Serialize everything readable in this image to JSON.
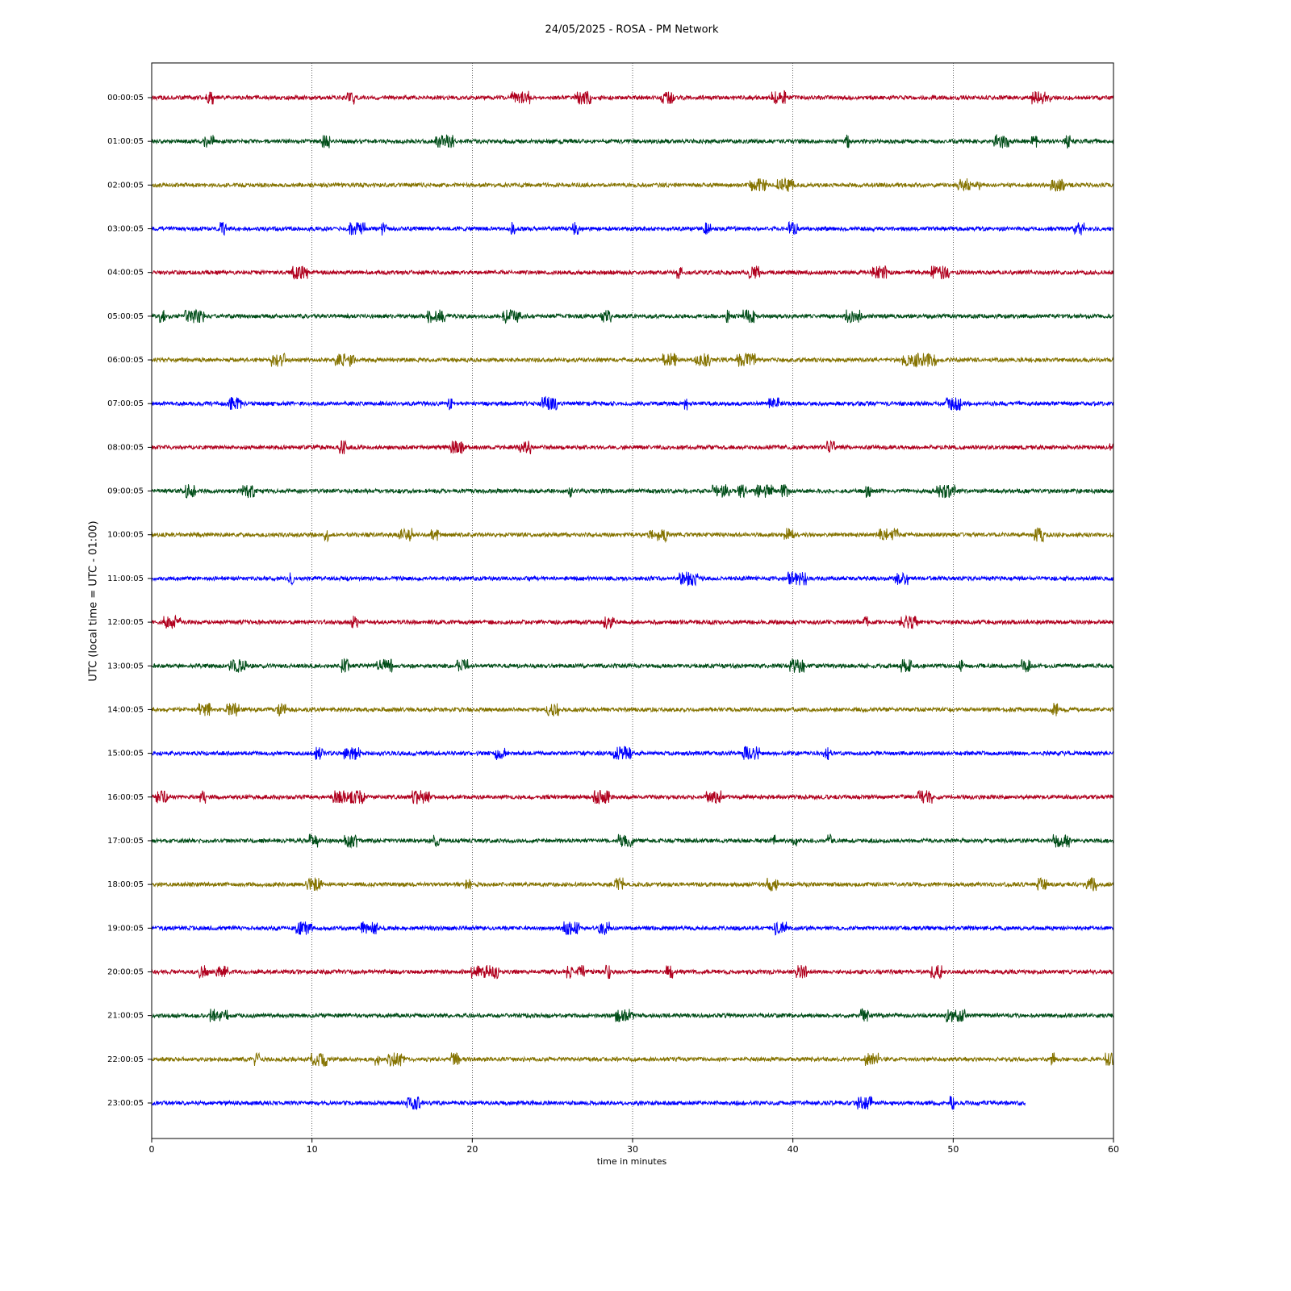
{
  "chart_data": {
    "type": "helicorder",
    "title": "24/05/2025 - ROSA - PM Network",
    "xlabel": "time in minutes",
    "ylabel": "UTC (local time = UTC - 01:00)",
    "xlim": [
      0,
      60
    ],
    "xticks": [
      0,
      10,
      20,
      30,
      40,
      50,
      60
    ],
    "grid": true,
    "series": [
      {
        "name": "00:00:05",
        "color": "#b0001e",
        "span": [
          0,
          60
        ]
      },
      {
        "name": "01:00:05",
        "color": "#004d18",
        "span": [
          0,
          60
        ]
      },
      {
        "name": "02:00:05",
        "color": "#857300",
        "span": [
          0,
          60
        ]
      },
      {
        "name": "03:00:05",
        "color": "#0000ff",
        "span": [
          0,
          60
        ]
      },
      {
        "name": "04:00:05",
        "color": "#b0001e",
        "span": [
          0,
          60
        ]
      },
      {
        "name": "05:00:05",
        "color": "#004d18",
        "span": [
          0,
          60
        ]
      },
      {
        "name": "06:00:05",
        "color": "#857300",
        "span": [
          0,
          60
        ]
      },
      {
        "name": "07:00:05",
        "color": "#0000ff",
        "span": [
          0,
          60
        ]
      },
      {
        "name": "08:00:05",
        "color": "#b0001e",
        "span": [
          0,
          60
        ]
      },
      {
        "name": "09:00:05",
        "color": "#004d18",
        "span": [
          0,
          60
        ]
      },
      {
        "name": "10:00:05",
        "color": "#857300",
        "span": [
          0,
          60
        ]
      },
      {
        "name": "11:00:05",
        "color": "#0000ff",
        "span": [
          0,
          60
        ]
      },
      {
        "name": "12:00:05",
        "color": "#b0001e",
        "span": [
          0,
          60
        ]
      },
      {
        "name": "13:00:05",
        "color": "#004d18",
        "span": [
          0,
          60
        ]
      },
      {
        "name": "14:00:05",
        "color": "#857300",
        "span": [
          0,
          60
        ]
      },
      {
        "name": "15:00:05",
        "color": "#0000ff",
        "span": [
          0,
          60
        ]
      },
      {
        "name": "16:00:05",
        "color": "#b0001e",
        "span": [
          0,
          60
        ]
      },
      {
        "name": "17:00:05",
        "color": "#004d18",
        "span": [
          0,
          60
        ]
      },
      {
        "name": "18:00:05",
        "color": "#857300",
        "span": [
          0,
          60
        ]
      },
      {
        "name": "19:00:05",
        "color": "#0000ff",
        "span": [
          0,
          60
        ]
      },
      {
        "name": "20:00:05",
        "color": "#b0001e",
        "span": [
          0,
          60
        ]
      },
      {
        "name": "21:00:05",
        "color": "#004d18",
        "span": [
          0,
          60
        ]
      },
      {
        "name": "22:00:05",
        "color": "#857300",
        "span": [
          0,
          60
        ]
      },
      {
        "name": "23:00:05",
        "color": "#0000ff",
        "span": [
          0,
          54.5
        ]
      }
    ]
  }
}
